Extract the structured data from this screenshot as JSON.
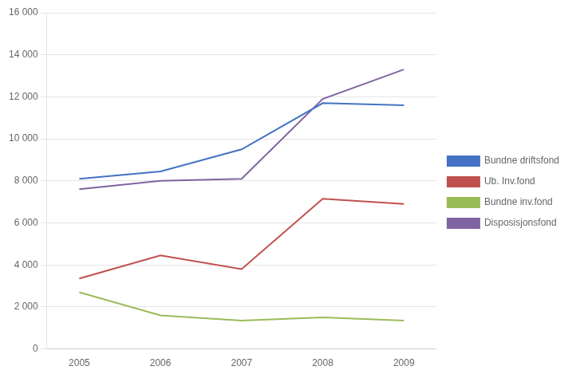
{
  "chart_data": {
    "type": "line",
    "x": [
      2005,
      2006,
      2007,
      2008,
      2009
    ],
    "series": [
      {
        "name": "Bundne driftsfond",
        "color": "#4472C4",
        "values": [
          8100,
          8450,
          9500,
          11700,
          11600
        ]
      },
      {
        "name": "Ub. Inv.fond",
        "color": "#C0504D",
        "values": [
          3350,
          4450,
          3800,
          7150,
          6900
        ]
      },
      {
        "name": "Bundne inv.fond",
        "color": "#9BBB59",
        "values": [
          2700,
          1600,
          1350,
          1500,
          1350
        ]
      },
      {
        "name": "Disposisjonsfond",
        "color": "#8064A2",
        "values": [
          7600,
          8000,
          8100,
          11900,
          13300
        ]
      }
    ],
    "xlim": [
      2004.6,
      2009.4
    ],
    "xticks": [
      2005,
      2006,
      2007,
      2008,
      2009
    ],
    "ylim": [
      0,
      16000
    ],
    "yticks": [
      0,
      {
        "value": 2000,
        "label": "2 000"
      },
      {
        "value": 4000,
        "label": "4 000"
      },
      {
        "value": 6000,
        "label": "6 000"
      },
      {
        "value": 8000,
        "label": "8 000"
      },
      {
        "value": 10000,
        "label": "10 000"
      },
      {
        "value": 12000,
        "label": "12 000"
      },
      {
        "value": 14000,
        "label": "14 000"
      },
      {
        "value": 16000,
        "label": "16 000"
      }
    ],
    "grid": "y",
    "legend": "right"
  }
}
